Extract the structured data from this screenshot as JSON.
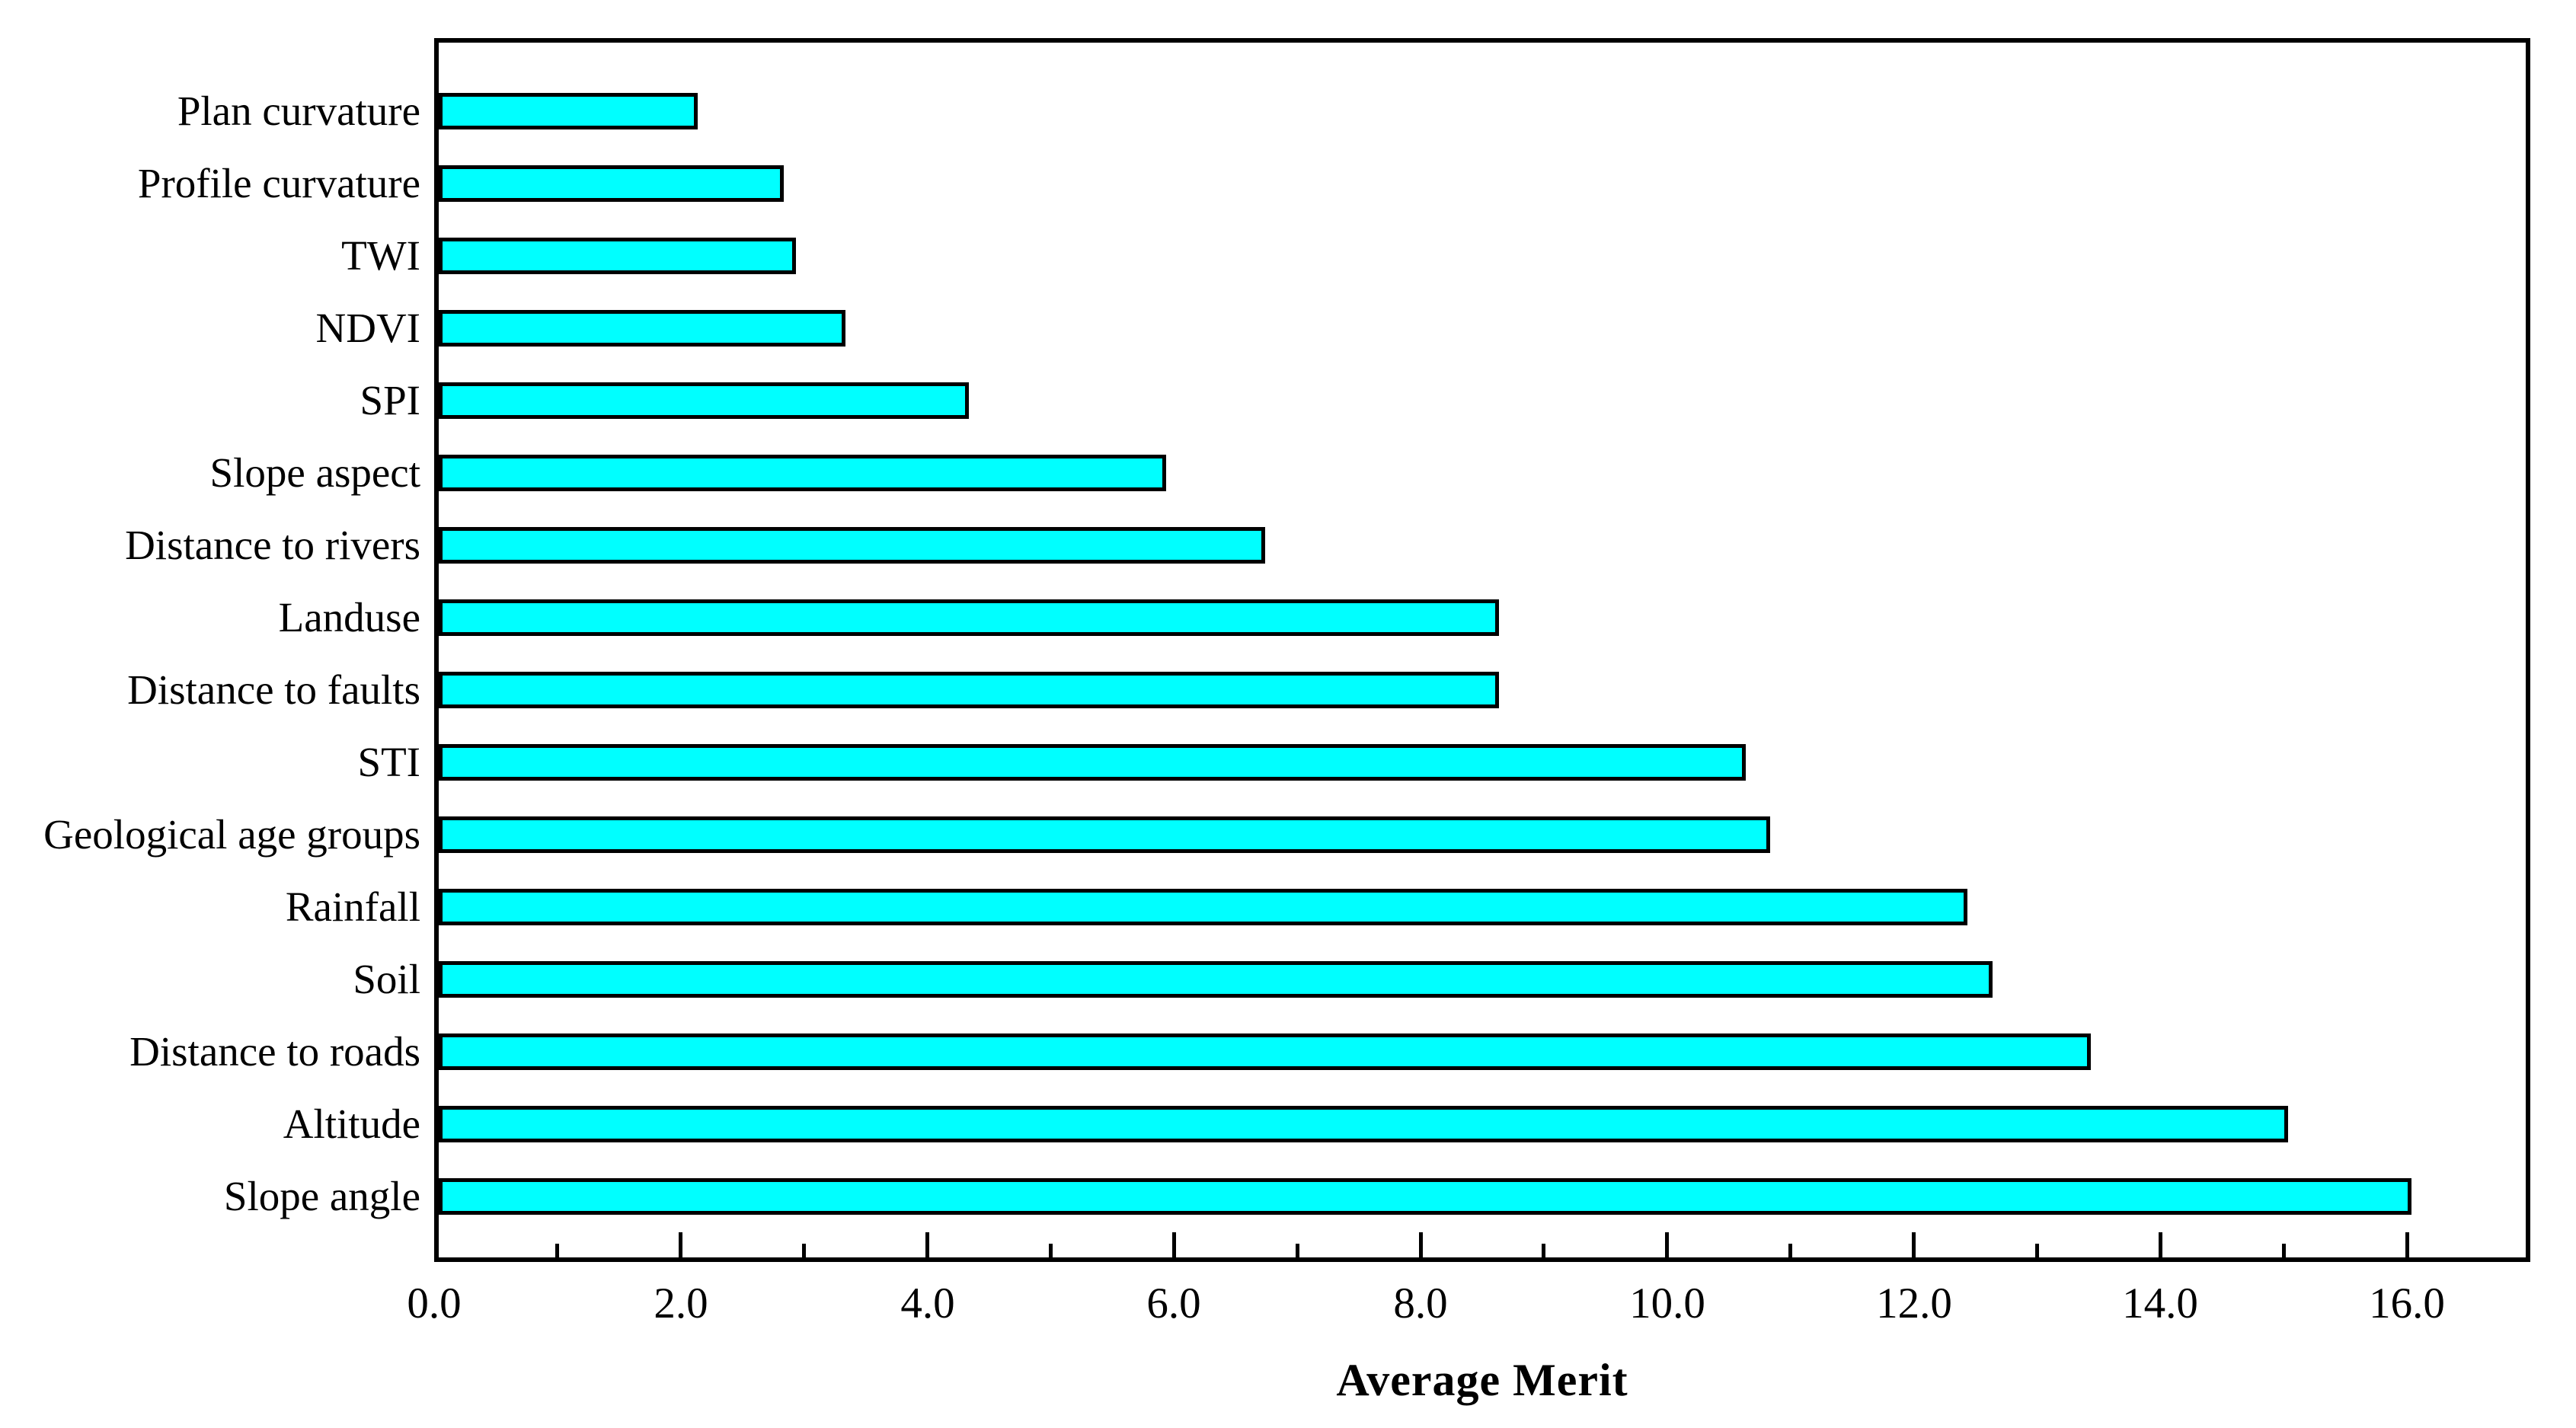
{
  "chart_data": {
    "type": "bar",
    "orientation": "horizontal",
    "xlabel": "Average Merit",
    "categories": [
      "Plan curvature",
      "Profile curvature",
      "TWI",
      "NDVI",
      "SPI",
      "Slope aspect",
      "Distance to rivers",
      "Landuse",
      "Distance to faults",
      "STI",
      "Geological age groups",
      "Rainfall",
      "Soil",
      "Distance to roads",
      "Altitude",
      "Slope angle"
    ],
    "values": [
      2.1,
      2.8,
      2.9,
      3.3,
      4.3,
      5.9,
      6.7,
      8.6,
      8.6,
      10.6,
      10.8,
      12.4,
      12.6,
      13.4,
      15.0,
      16.0
    ],
    "xlim": [
      0,
      17
    ],
    "xtick_labels": [
      "0.0",
      "2.0",
      "4.0",
      "6.0",
      "8.0",
      "10.0",
      "12.0",
      "14.0",
      "16.0"
    ],
    "xticks_major": [
      0,
      2,
      4,
      6,
      8,
      10,
      12,
      14,
      16
    ],
    "xticks_minor": [
      1,
      3,
      5,
      7,
      9,
      11,
      13,
      15
    ],
    "grid": false,
    "legend": null,
    "colors": {
      "bar_fill": "#00ffff",
      "bar_stroke": "#000000",
      "frame": "#000000",
      "background": "#ffffff",
      "text": "#000000"
    }
  }
}
